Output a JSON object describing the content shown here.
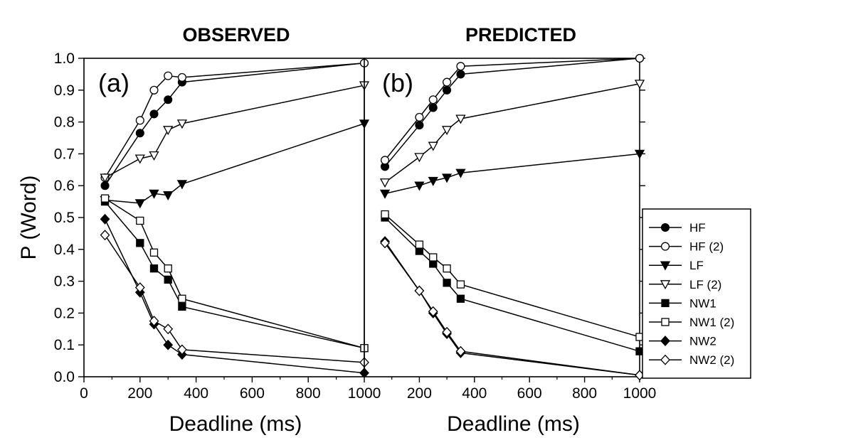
{
  "chart_data": [
    {
      "type": "line",
      "title": "OBSERVED",
      "panel_label": "(a)",
      "xlabel": "Deadline (ms)",
      "ylabel": "P (Word)",
      "xlim": [
        0,
        1000
      ],
      "ylim": [
        0.0,
        1.0
      ],
      "x_ticks": [
        "0",
        "200",
        "400",
        "600",
        "800",
        "1000"
      ],
      "y_ticks": [
        "0.0",
        "0.1",
        "0.2",
        "0.3",
        "0.4",
        "0.5",
        "0.6",
        "0.7",
        "0.8",
        "0.9",
        "1.0"
      ],
      "grid": false,
      "series": [
        {
          "name": "HF",
          "marker": "circle",
          "filled": true,
          "points": [
            [
              75,
              0.6
            ],
            [
              200,
              0.765
            ],
            [
              250,
              0.825
            ],
            [
              300,
              0.87
            ],
            [
              350,
              0.925
            ],
            [
              1000,
              0.985
            ]
          ]
        },
        {
          "name": "HF (2)",
          "marker": "circle",
          "filled": false,
          "points": [
            [
              75,
              0.625
            ],
            [
              200,
              0.805
            ],
            [
              250,
              0.9
            ],
            [
              300,
              0.945
            ],
            [
              350,
              0.94
            ],
            [
              1000,
              0.985
            ]
          ]
        },
        {
          "name": "LF",
          "marker": "triangle-down",
          "filled": true,
          "points": [
            [
              75,
              0.555
            ],
            [
              200,
              0.545
            ],
            [
              250,
              0.575
            ],
            [
              300,
              0.57
            ],
            [
              350,
              0.605
            ],
            [
              1000,
              0.795
            ]
          ]
        },
        {
          "name": "LF (2)",
          "marker": "triangle-down",
          "filled": false,
          "points": [
            [
              75,
              0.625
            ],
            [
              200,
              0.685
            ],
            [
              250,
              0.695
            ],
            [
              300,
              0.775
            ],
            [
              350,
              0.795
            ],
            [
              1000,
              0.915
            ]
          ]
        },
        {
          "name": "NW1",
          "marker": "square",
          "filled": true,
          "points": [
            [
              75,
              0.55
            ],
            [
              200,
              0.42
            ],
            [
              250,
              0.34
            ],
            [
              300,
              0.305
            ],
            [
              350,
              0.22
            ],
            [
              1000,
              0.09
            ]
          ]
        },
        {
          "name": "NW1 (2)",
          "marker": "square",
          "filled": false,
          "points": [
            [
              75,
              0.56
            ],
            [
              200,
              0.49
            ],
            [
              250,
              0.39
            ],
            [
              300,
              0.34
            ],
            [
              350,
              0.245
            ],
            [
              1000,
              0.09
            ]
          ]
        },
        {
          "name": "NW2",
          "marker": "diamond",
          "filled": true,
          "points": [
            [
              75,
              0.495
            ],
            [
              200,
              0.265
            ],
            [
              250,
              0.165
            ],
            [
              300,
              0.1
            ],
            [
              350,
              0.07
            ],
            [
              1000,
              0.012
            ]
          ]
        },
        {
          "name": "NW2 (2)",
          "marker": "diamond",
          "filled": false,
          "points": [
            [
              75,
              0.445
            ],
            [
              200,
              0.28
            ],
            [
              250,
              0.175
            ],
            [
              300,
              0.15
            ],
            [
              350,
              0.085
            ],
            [
              1000,
              0.045
            ]
          ]
        }
      ]
    },
    {
      "type": "line",
      "title": "PREDICTED",
      "panel_label": "(b)",
      "xlabel": "Deadline (ms)",
      "ylabel": "",
      "xlim": [
        0,
        1000
      ],
      "ylim": [
        0.0,
        1.0
      ],
      "x_ticks": [
        "200",
        "400",
        "600",
        "800",
        "1000"
      ],
      "grid": false,
      "series": [
        {
          "name": "HF",
          "marker": "circle",
          "filled": true,
          "points": [
            [
              75,
              0.66
            ],
            [
              200,
              0.79
            ],
            [
              250,
              0.845
            ],
            [
              300,
              0.9
            ],
            [
              350,
              0.95
            ],
            [
              1000,
              1.0
            ]
          ]
        },
        {
          "name": "HF (2)",
          "marker": "circle",
          "filled": false,
          "points": [
            [
              75,
              0.68
            ],
            [
              200,
              0.815
            ],
            [
              250,
              0.87
            ],
            [
              300,
              0.925
            ],
            [
              350,
              0.975
            ],
            [
              1000,
              1.0
            ]
          ]
        },
        {
          "name": "LF",
          "marker": "triangle-down",
          "filled": true,
          "points": [
            [
              75,
              0.575
            ],
            [
              200,
              0.6
            ],
            [
              250,
              0.615
            ],
            [
              300,
              0.625
            ],
            [
              350,
              0.64
            ],
            [
              1000,
              0.7
            ]
          ]
        },
        {
          "name": "LF (2)",
          "marker": "triangle-down",
          "filled": false,
          "points": [
            [
              75,
              0.61
            ],
            [
              200,
              0.69
            ],
            [
              250,
              0.725
            ],
            [
              300,
              0.775
            ],
            [
              350,
              0.81
            ],
            [
              1000,
              0.92
            ]
          ]
        },
        {
          "name": "NW1",
          "marker": "square",
          "filled": true,
          "points": [
            [
              75,
              0.5
            ],
            [
              200,
              0.395
            ],
            [
              250,
              0.355
            ],
            [
              300,
              0.295
            ],
            [
              350,
              0.245
            ],
            [
              1000,
              0.08
            ]
          ]
        },
        {
          "name": "NW1 (2)",
          "marker": "square",
          "filled": false,
          "points": [
            [
              75,
              0.51
            ],
            [
              200,
              0.415
            ],
            [
              250,
              0.375
            ],
            [
              300,
              0.34
            ],
            [
              350,
              0.29
            ],
            [
              1000,
              0.125
            ]
          ]
        },
        {
          "name": "NW2",
          "marker": "diamond",
          "filled": true,
          "points": [
            [
              75,
              0.425
            ],
            [
              200,
              0.27
            ],
            [
              250,
              0.2
            ],
            [
              300,
              0.135
            ],
            [
              350,
              0.075
            ],
            [
              1000,
              0.005
            ]
          ]
        },
        {
          "name": "NW2 (2)",
          "marker": "diamond",
          "filled": false,
          "points": [
            [
              75,
              0.42
            ],
            [
              200,
              0.27
            ],
            [
              250,
              0.205
            ],
            [
              300,
              0.14
            ],
            [
              350,
              0.08
            ],
            [
              1000,
              0.005
            ]
          ]
        }
      ]
    }
  ],
  "legend": {
    "placement": "right",
    "entries": [
      "HF",
      "HF (2)",
      "LF",
      "LF (2)",
      "NW1",
      "NW1 (2)",
      "NW2",
      "NW2 (2)"
    ]
  },
  "colors": {
    "line": "#000000",
    "background": "#ffffff"
  }
}
